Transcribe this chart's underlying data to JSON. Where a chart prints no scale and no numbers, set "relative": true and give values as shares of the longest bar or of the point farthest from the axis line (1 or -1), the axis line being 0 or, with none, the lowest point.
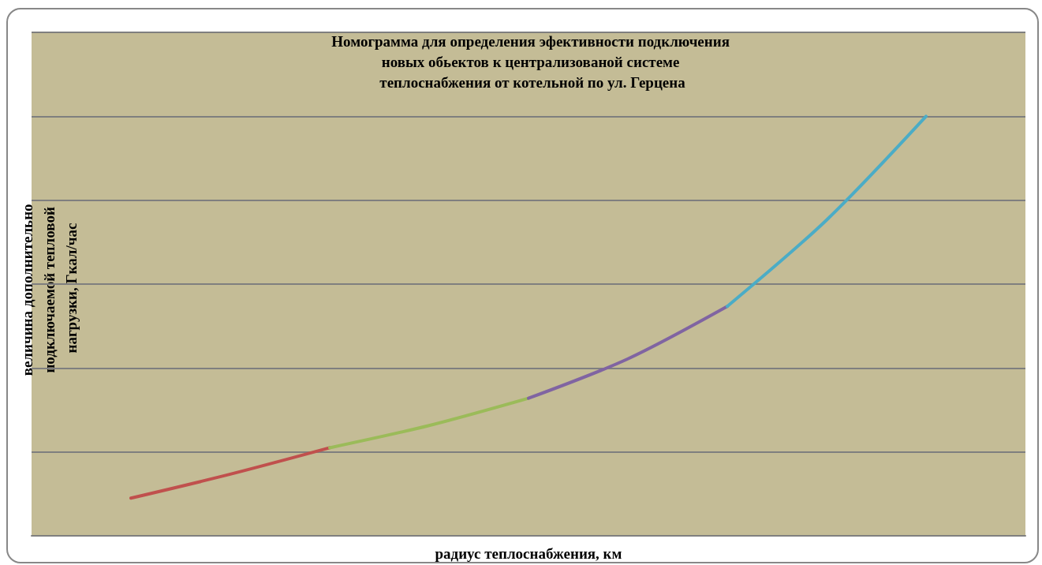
{
  "chart_data": {
    "type": "line",
    "title": "Номограмма для определения эфективности подключения новых обьектов к централизованой системе теплоснабжения от котельной по ул. Герцена",
    "xlabel": "радиус теплоснабжения, км",
    "ylabel": "величина дополнительно подключаемой тепловой нагрузки, Гкал/час",
    "relative": true,
    "categories": [
      null,
      null,
      null,
      null,
      null,
      null,
      null,
      null,
      null
    ],
    "series": [
      {
        "color": "#c0504d",
        "values": [
          0.09,
          0.147,
          0.21,
          null,
          null,
          null,
          null,
          null,
          null
        ]
      },
      {
        "color": "#9bbb59",
        "values": [
          null,
          null,
          0.21,
          0.263,
          0.328,
          null,
          null,
          null,
          null
        ]
      },
      {
        "color": "#8064a2",
        "values": [
          null,
          null,
          null,
          null,
          0.328,
          0.422,
          0.547,
          null,
          null
        ]
      },
      {
        "color": "#4bacc6",
        "values": [
          null,
          null,
          null,
          null,
          null,
          null,
          0.547,
          0.753,
          1
        ]
      }
    ],
    "grid": "y",
    "marker": "none",
    "line_style": "solid"
  }
}
